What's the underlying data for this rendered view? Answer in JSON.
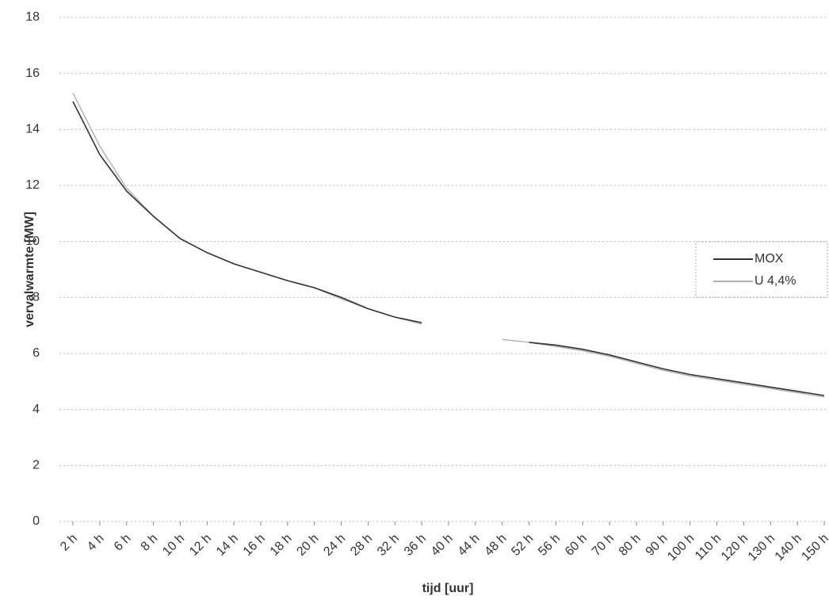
{
  "chart_data": {
    "type": "line",
    "ylabel": "vervalwarmte [MW]",
    "xlabel": "tijd [uur]",
    "categories": [
      "2 h",
      "4 h",
      "6 h",
      "8 h",
      "10 h",
      "12 h",
      "14 h",
      "16 h",
      "18 h",
      "20 h",
      "24 h",
      "28 h",
      "32 h",
      "36 h",
      "40 h",
      "44 h",
      "48 h",
      "52 h",
      "56 h",
      "60 h",
      "70 h",
      "80 h",
      "90 h",
      "100 h",
      "110 h",
      "120 h",
      "130 h",
      "140 h",
      "150 h"
    ],
    "series": [
      {
        "name": "MOX",
        "color": "#333333",
        "values": [
          15.0,
          13.1,
          11.8,
          10.9,
          10.1,
          9.6,
          9.2,
          8.9,
          8.6,
          8.35,
          8.0,
          7.6,
          7.3,
          7.1,
          null,
          null,
          null,
          6.4,
          6.3,
          6.15,
          5.95,
          5.7,
          5.45,
          5.25,
          5.1,
          4.95,
          4.8,
          4.65,
          4.5
        ]
      },
      {
        "name": "U 4,4%",
        "color": "#b0b0b0",
        "values": [
          15.3,
          13.4,
          11.9,
          10.9,
          10.1,
          9.6,
          9.2,
          8.9,
          8.6,
          8.35,
          7.95,
          7.6,
          7.3,
          7.05,
          null,
          null,
          6.5,
          6.4,
          6.25,
          6.1,
          5.9,
          5.65,
          5.4,
          5.2,
          5.05,
          4.9,
          4.75,
          4.6,
          4.45
        ]
      }
    ],
    "ylim": [
      0,
      18
    ],
    "yticks": [
      0,
      2,
      4,
      6,
      8,
      10,
      12,
      14,
      16,
      18
    ],
    "grid": true,
    "legend": "right"
  }
}
